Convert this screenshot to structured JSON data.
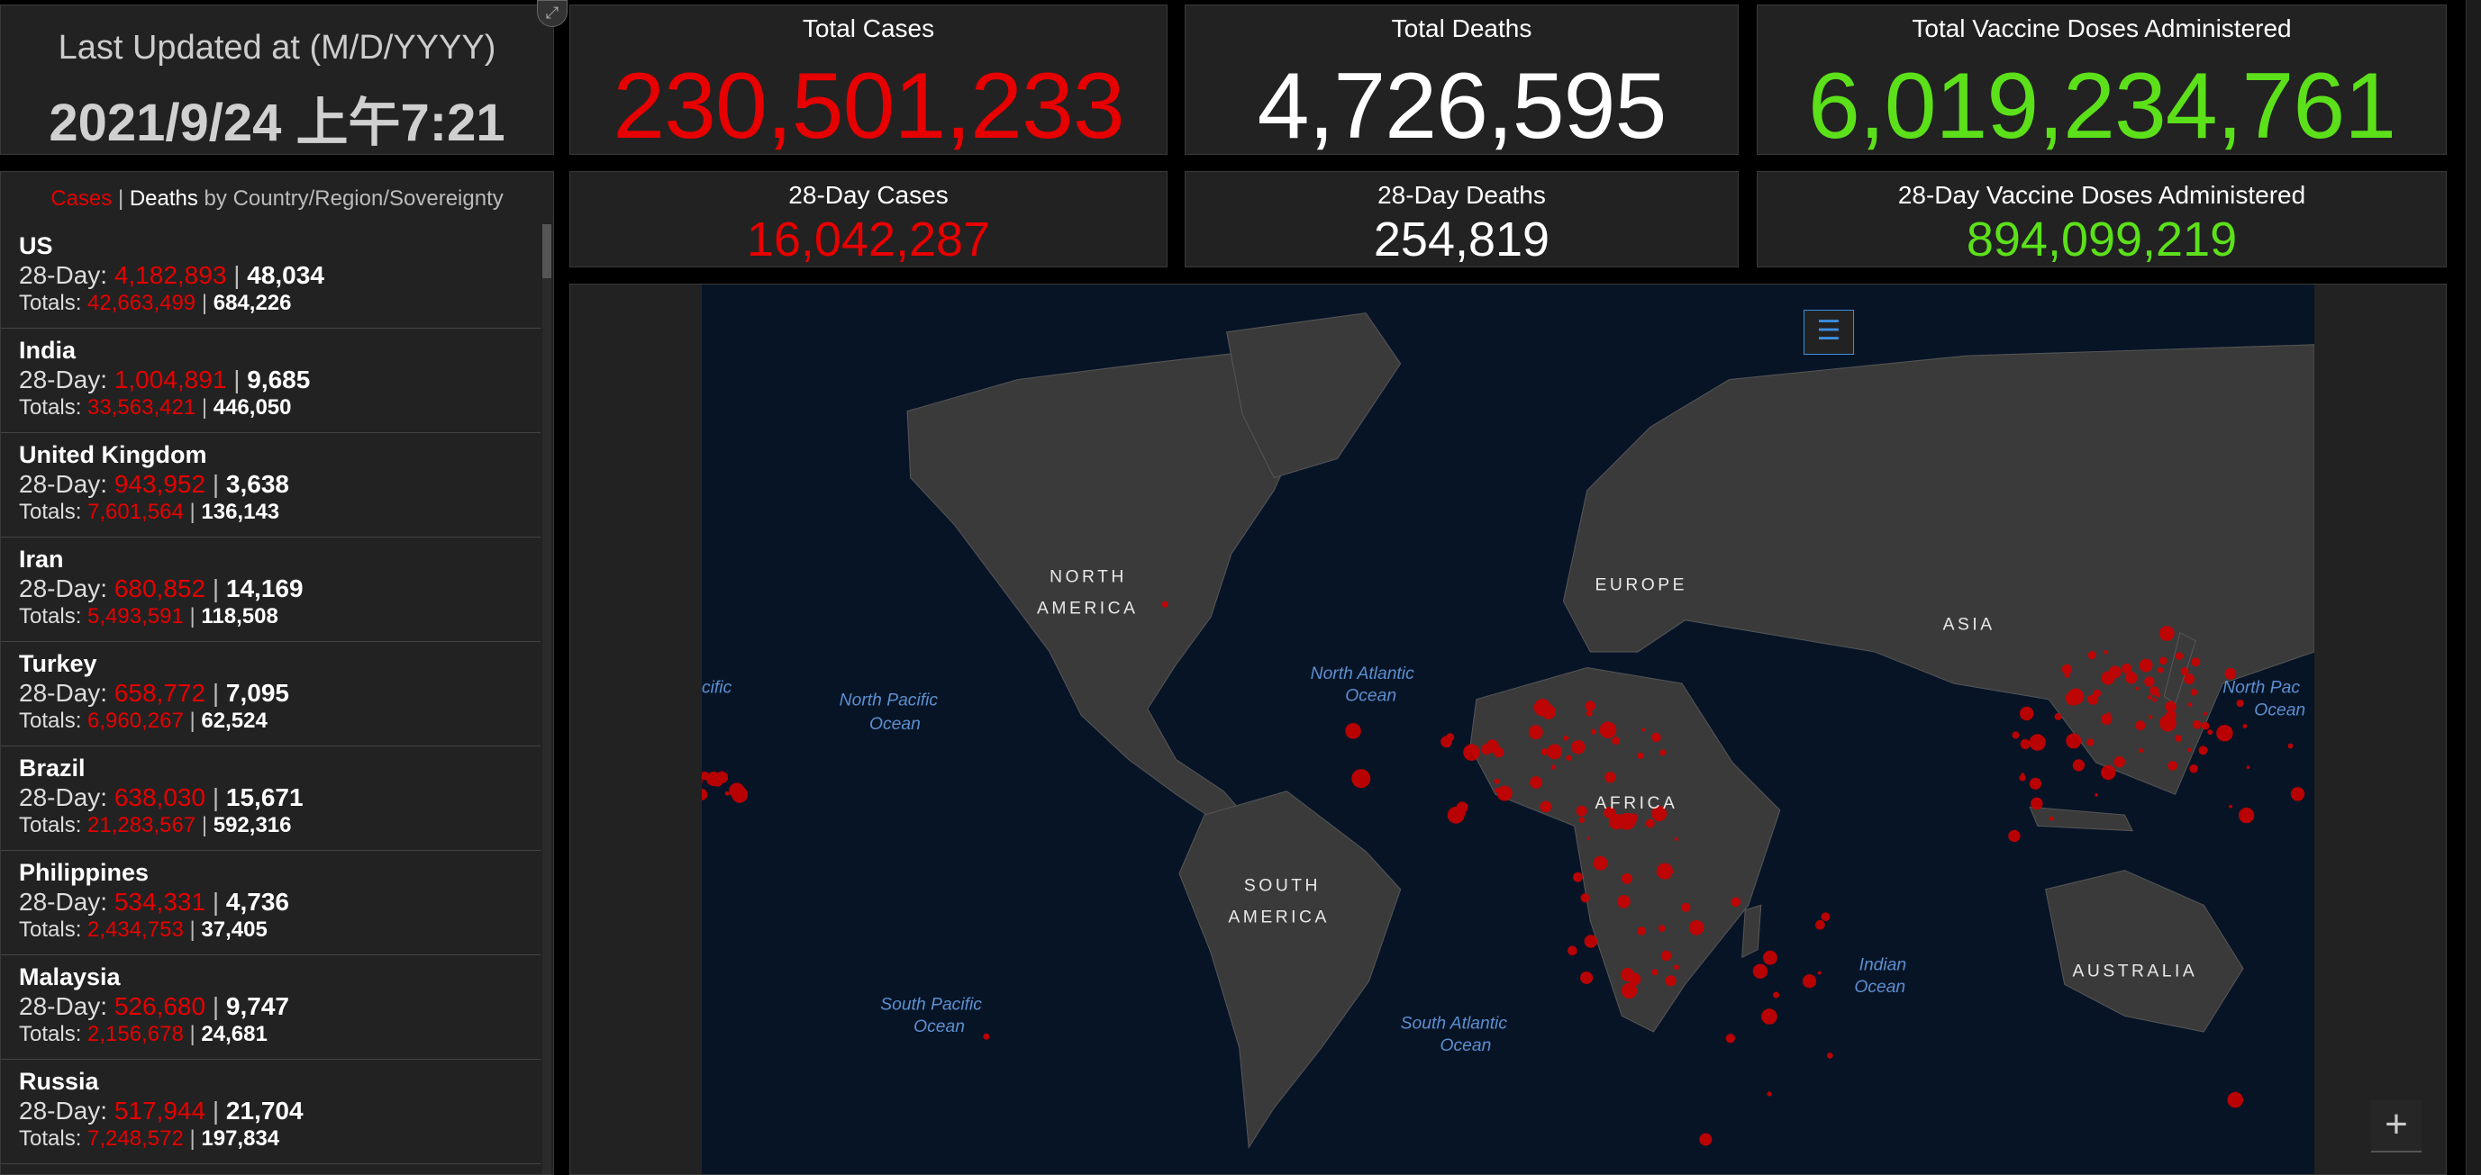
{
  "last_updated": {
    "label": "Last Updated at (M/D/YYYY)",
    "value": "2021/9/24 上午7:21"
  },
  "totals": {
    "cases": {
      "label": "Total Cases",
      "value": "230,501,233"
    },
    "deaths": {
      "label": "Total Deaths",
      "value": "4,726,595"
    },
    "vaccines": {
      "label": "Total Vaccine Doses Administered",
      "value": "6,019,234,761"
    }
  },
  "day28": {
    "cases": {
      "label": "28-Day Cases",
      "value": "16,042,287"
    },
    "deaths": {
      "label": "28-Day Deaths",
      "value": "254,819"
    },
    "vaccines": {
      "label": "28-Day Vaccine Doses Administered",
      "value": "894,099,219"
    }
  },
  "list": {
    "header": {
      "cases": "Cases",
      "sep": "|",
      "deaths": "Deaths",
      "rest": " by Country/Region/Sovereignty"
    },
    "day_label": "28-Day: ",
    "totals_label": "Totals: ",
    "sep": "|",
    "rows": [
      {
        "name": "US",
        "d_cases": "4,182,893",
        "d_deaths": "48,034",
        "t_cases": "42,663,499",
        "t_deaths": "684,226"
      },
      {
        "name": "India",
        "d_cases": "1,004,891",
        "d_deaths": "9,685",
        "t_cases": "33,563,421",
        "t_deaths": "446,050"
      },
      {
        "name": "United Kingdom",
        "d_cases": "943,952",
        "d_deaths": "3,638",
        "t_cases": "7,601,564",
        "t_deaths": "136,143"
      },
      {
        "name": "Iran",
        "d_cases": "680,852",
        "d_deaths": "14,169",
        "t_cases": "5,493,591",
        "t_deaths": "118,508"
      },
      {
        "name": "Turkey",
        "d_cases": "658,772",
        "d_deaths": "7,095",
        "t_cases": "6,960,267",
        "t_deaths": "62,524"
      },
      {
        "name": "Brazil",
        "d_cases": "638,030",
        "d_deaths": "15,671",
        "t_cases": "21,283,567",
        "t_deaths": "592,316"
      },
      {
        "name": "Philippines",
        "d_cases": "534,331",
        "d_deaths": "4,736",
        "t_cases": "2,434,753",
        "t_deaths": "37,405"
      },
      {
        "name": "Malaysia",
        "d_cases": "526,680",
        "d_deaths": "9,747",
        "t_cases": "2,156,678",
        "t_deaths": "24,681"
      },
      {
        "name": "Russia",
        "d_cases": "517,944",
        "d_deaths": "21,704",
        "t_cases": "7,248,572",
        "t_deaths": "197,834"
      }
    ]
  },
  "map": {
    "continents": {
      "na1": "NORTH",
      "na2": "AMERICA",
      "eu": "EUROPE",
      "as": "ASIA",
      "af": "AFRICA",
      "sa1": "SOUTH",
      "sa2": "AMERICA",
      "au": "AUSTRALIA"
    },
    "oceans": {
      "np1": "North Pacific",
      "np2": "Ocean",
      "na1": "North Atlantic",
      "na2": "Ocean",
      "sp1": "South Pacific",
      "sp2": "Ocean",
      "sa1": "South Atlantic",
      "sa2": "Ocean",
      "io1": "Indian",
      "io2": "Ocean",
      "left": "cific",
      "rp1": "North Pac",
      "rp2": "Ocean"
    },
    "legend_icon": "legend-list-icon",
    "zoom_in": "+",
    "expand_icon": "expand-icon"
  },
  "colors": {
    "cases": "#e60000",
    "deaths": "#ffffff",
    "vaccines": "#5ce01a",
    "panel": "#222222",
    "ocean": "#071426",
    "land": "#3a3a3a",
    "dots": "#cc0000"
  }
}
